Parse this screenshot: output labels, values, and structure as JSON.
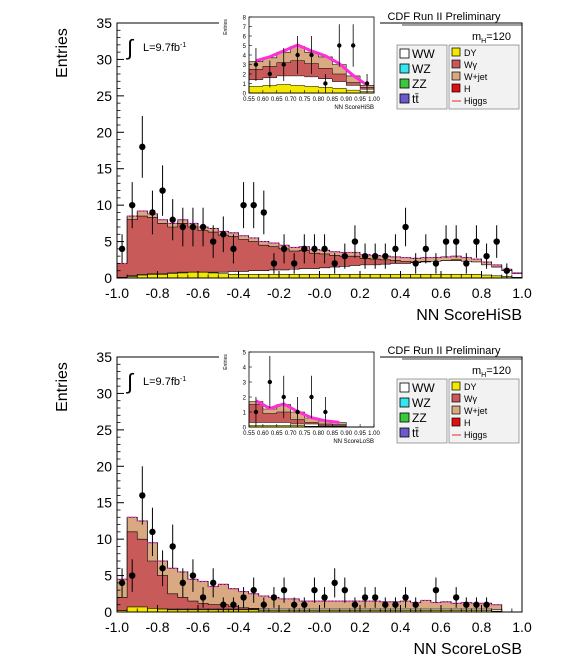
{
  "chart_data": [
    {
      "type": "bar",
      "experiment": "CDF Run II Preliminary",
      "mass_label": "m",
      "mass_sub": "H",
      "mass_value": "=120",
      "lumi": "L=9.7fb",
      "lumi_exp": "-1",
      "ylabel": "Entries",
      "xlabel": "NN ScoreHiSB",
      "xlim": [
        -1.0,
        1.0
      ],
      "ylim": [
        0,
        35
      ],
      "xticks": [
        "-1.0",
        "-0.8",
        "-0.6",
        "-0.4",
        "-0.2",
        "-0.0",
        "0.2",
        "0.4",
        "0.6",
        "0.8",
        "1.0"
      ],
      "yticks": [
        "0",
        "5",
        "10",
        "15",
        "20",
        "25",
        "30",
        "35"
      ],
      "legend": [
        {
          "label": "WW",
          "color": "#ffffff"
        },
        {
          "label": "DY",
          "color": "#f4e800"
        },
        {
          "label": "WZ",
          "color": "#33e6f0"
        },
        {
          "label": "Wγ",
          "color": "#c85a5a"
        },
        {
          "label": "ZZ",
          "color": "#3cc83c"
        },
        {
          "label": "W+jet",
          "color": "#d9aa82"
        },
        {
          "label": "tt̄",
          "color": "#6a5acd"
        },
        {
          "label": "H",
          "color": "#e01010"
        },
        {
          "label": "Higgs",
          "color": "#e64b4b"
        }
      ],
      "bins": 40,
      "total": [
        2,
        8.5,
        9.2,
        8.8,
        8,
        7.5,
        8,
        7.5,
        7,
        6.8,
        6.4,
        6.2,
        5.8,
        5.5,
        5,
        4.8,
        4.5,
        4.2,
        4.3,
        3.9,
        3.8,
        3.6,
        3.5,
        3.5,
        3.2,
        3.1,
        3,
        2.9,
        2.8,
        2.7,
        2.8,
        2.8,
        2.9,
        3,
        2.8,
        2.6,
        2.2,
        1.8,
        1.2,
        0.7
      ],
      "wjet": [
        2,
        8,
        8.5,
        8.3,
        7.5,
        7,
        7.5,
        7,
        6.5,
        6.3,
        5.9,
        5.7,
        5.3,
        5,
        4.5,
        4.3,
        4,
        3.7,
        3.8,
        3.4,
        3.3,
        3.1,
        3,
        3,
        2.7,
        2.6,
        2.5,
        2.4,
        2.3,
        2.2,
        2.3,
        2.3,
        2.4,
        2.5,
        2.3,
        2.1,
        1.8,
        1.5,
        1,
        0.6
      ],
      "ww": [
        0.1,
        0.3,
        0.5,
        0.6,
        0.6,
        0.7,
        0.8,
        0.8,
        0.8,
        0.8,
        0.8,
        0.9,
        0.9,
        1,
        1,
        1.1,
        1.1,
        1.2,
        1.3,
        1.3,
        1.4,
        1.5,
        1.6,
        1.7,
        1.8,
        1.8,
        1.9,
        2,
        2,
        2.1,
        2.2,
        2.3,
        2.4,
        2.4,
        2.3,
        2.2,
        1.8,
        1.5,
        1,
        0.6
      ],
      "dy": [
        0.05,
        0.2,
        0.4,
        0.5,
        0.5,
        0.6,
        0.7,
        0.8,
        0.8,
        0.7,
        0.6,
        0.5,
        0.5,
        0.5,
        0.5,
        0.5,
        0.5,
        0.5,
        0.5,
        0.5,
        0.5,
        0.5,
        0.5,
        0.5,
        0.5,
        0.5,
        0.5,
        0.5,
        0.5,
        0.5,
        0.5,
        0.5,
        0.5,
        0.5,
        0.5,
        0.5,
        0.4,
        0.3,
        0.2,
        0.1
      ],
      "data": [
        4,
        10,
        18,
        9,
        12,
        8,
        7,
        7,
        7,
        5,
        6,
        4,
        10,
        10,
        9,
        2,
        4,
        2,
        4,
        4,
        4,
        2,
        3,
        5,
        3,
        3,
        3,
        4,
        7,
        2,
        4,
        2,
        5,
        5,
        2,
        5,
        3,
        5,
        1,
        0
      ],
      "inset": {
        "xlabel": "NN ScoreHiSB",
        "ylabel": "Entries",
        "xlim": [
          0.55,
          1.0
        ],
        "ylim": [
          0,
          8
        ],
        "xticks": [
          "0.55",
          "0.60",
          "0.65",
          "0.70",
          "0.75",
          "0.80",
          "0.85",
          "0.90",
          "0.95",
          "1.00"
        ],
        "yticks": [
          "0",
          "1",
          "2",
          "3",
          "4",
          "5",
          "6",
          "7",
          "8"
        ],
        "bins": 9,
        "total": [
          3.3,
          3.7,
          4.3,
          4.9,
          4.3,
          3.8,
          3.0,
          1.8,
          0.8
        ],
        "wjet": [
          2.5,
          2.8,
          3.2,
          3.4,
          3.1,
          2.6,
          2.0,
          1.1,
          0.6
        ],
        "ww": [
          1.4,
          1.6,
          1.8,
          1.8,
          1.7,
          1.5,
          1.2,
          0.8,
          0.4
        ],
        "dy": [
          0.7,
          0.8,
          0.9,
          0.8,
          0.7,
          0.6,
          0.5,
          0.3,
          0.15
        ],
        "data": [
          3,
          2,
          3,
          4,
          4,
          1,
          5,
          5,
          1
        ]
      }
    },
    {
      "type": "bar",
      "experiment": "CDF Run II Preliminary",
      "mass_label": "m",
      "mass_sub": "H",
      "mass_value": "=120",
      "lumi": "L=9.7fb",
      "lumi_exp": "-1",
      "ylabel": "Entries",
      "xlabel": "NN ScoreLoSB",
      "xlim": [
        -1.0,
        1.0
      ],
      "ylim": [
        0,
        35
      ],
      "xticks": [
        "-1.0",
        "-0.8",
        "-0.6",
        "-0.4",
        "-0.2",
        "-0.0",
        "0.2",
        "0.4",
        "0.6",
        "0.8",
        "1.0"
      ],
      "yticks": [
        "0",
        "5",
        "10",
        "15",
        "20",
        "25",
        "30",
        "35"
      ],
      "legend": [
        {
          "label": "WW",
          "color": "#ffffff"
        },
        {
          "label": "DY",
          "color": "#f4e800"
        },
        {
          "label": "WZ",
          "color": "#33e6f0"
        },
        {
          "label": "Wγ",
          "color": "#c85a5a"
        },
        {
          "label": "ZZ",
          "color": "#3cc83c"
        },
        {
          "label": "W+jet",
          "color": "#d9aa82"
        },
        {
          "label": "tt̄",
          "color": "#6a5acd"
        },
        {
          "label": "H",
          "color": "#e01010"
        },
        {
          "label": "Higgs",
          "color": "#e64b4b"
        }
      ],
      "bins": 40,
      "total": [
        4.5,
        13,
        12.5,
        9.5,
        7,
        6,
        5.5,
        4.5,
        4.2,
        3.5,
        3.8,
        3.2,
        2.8,
        2.5,
        2.2,
        2,
        1.8,
        1.8,
        1.5,
        1.5,
        1.5,
        1.5,
        1.5,
        1.5,
        1.5,
        1.5,
        1.4,
        1.4,
        1.5,
        1.3,
        1.6,
        1.3,
        1.4,
        1.2,
        1.3,
        1.2,
        1.2,
        1,
        0,
        0
      ],
      "redpart": [
        2,
        11,
        10,
        7,
        5,
        2.5,
        2,
        1.5,
        1.2,
        1,
        1,
        0.8,
        0.6,
        0.5,
        0.4,
        0.3,
        0.3,
        0.3,
        0.3,
        0.3,
        0.3,
        0.3,
        0.3,
        0.3,
        0.3,
        0.3,
        0.3,
        0.3,
        0.3,
        0.3,
        0.3,
        0.3,
        0.3,
        0.3,
        0.3,
        0.3,
        0.3,
        0.2,
        0,
        0
      ],
      "ww": [
        0.2,
        0.4,
        0.4,
        0.4,
        0.4,
        0.4,
        0.4,
        0.4,
        0.4,
        0.4,
        0.4,
        0.4,
        0.4,
        0.4,
        0.4,
        0.4,
        0.4,
        0.4,
        0.4,
        0.4,
        0.4,
        0.4,
        0.4,
        0.4,
        0.4,
        0.4,
        0.4,
        0.4,
        0.4,
        0.4,
        0.4,
        0.4,
        0.4,
        0.4,
        0.4,
        0.4,
        0.4,
        0.3,
        0,
        0
      ],
      "dy": [
        0.2,
        0.7,
        0.7,
        0.5,
        0.4,
        0.3,
        0.3,
        0.3,
        0.3,
        0.3,
        0.3,
        0.3,
        0.3,
        0.3,
        0.2,
        0.2,
        0.2,
        0.2,
        0.2,
        0.2,
        0.2,
        0.2,
        0.2,
        0.2,
        0.2,
        0.2,
        0.2,
        0.2,
        0.2,
        0.2,
        0.2,
        0.2,
        0.2,
        0.2,
        0.2,
        0.2,
        0.2,
        0.1,
        0,
        0
      ],
      "data": [
        4,
        5,
        16,
        11,
        6,
        9,
        4,
        5,
        2,
        4,
        1,
        1,
        2,
        3,
        1,
        2,
        3,
        1,
        1,
        3,
        2,
        4,
        3,
        1,
        2,
        2,
        1,
        1,
        2,
        1,
        0,
        3,
        0,
        2,
        1,
        1,
        1,
        0,
        0,
        0
      ],
      "inset": {
        "xlabel": "NN ScoreLoSB",
        "ylabel": "Entries",
        "xlim": [
          0.55,
          1.0
        ],
        "ylim": [
          0,
          5
        ],
        "xticks": [
          "0.55",
          "0.60",
          "0.65",
          "0.70",
          "0.75",
          "0.80",
          "0.85",
          "0.90",
          "0.95",
          "1.00"
        ],
        "yticks": [
          "0",
          "1",
          "2",
          "3",
          "4",
          "5"
        ],
        "bins": 9,
        "total": [
          1.7,
          1.2,
          1.5,
          1.0,
          0.6,
          0.4,
          0.3,
          0,
          0
        ],
        "wjet": [
          1.5,
          0.9,
          1.0,
          0.5,
          0.3,
          0.2,
          0.15,
          0,
          0
        ],
        "ww": [
          0.3,
          0.3,
          0.3,
          0.2,
          0.2,
          0.1,
          0.1,
          0,
          0
        ],
        "dy": [
          0.1,
          0.1,
          0.1,
          0.1,
          0.05,
          0.05,
          0.05,
          0,
          0
        ],
        "data": [
          1,
          3,
          2,
          1,
          2,
          1,
          0,
          0,
          0
        ]
      }
    }
  ]
}
